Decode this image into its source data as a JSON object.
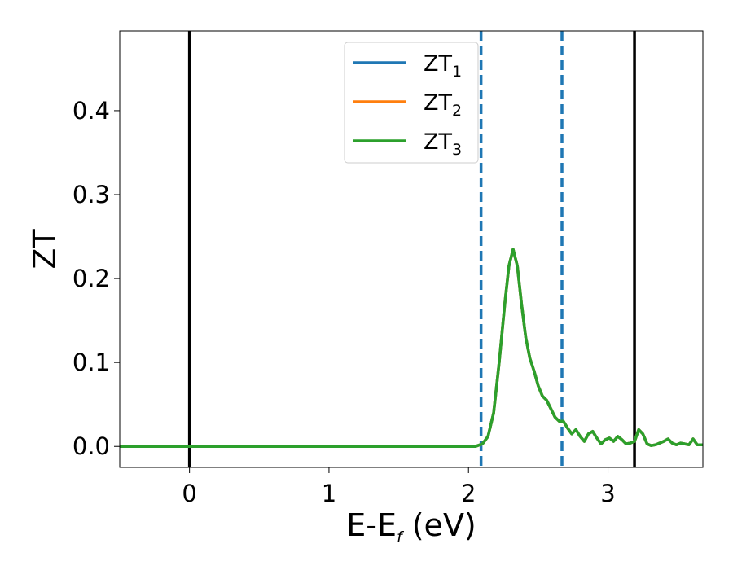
{
  "chart_data": {
    "type": "line",
    "title": "",
    "xlabel": "E-E",
    "xlabel_sub": "f",
    "xlabel_suffix": " (eV)",
    "ylabel": "ZT",
    "xlim": [
      -0.5,
      3.68
    ],
    "ylim": [
      -0.025,
      0.495
    ],
    "xticks": [
      0,
      1,
      2,
      3
    ],
    "xtick_labels": [
      "0",
      "1",
      "2",
      "3"
    ],
    "yticks": [
      0.0,
      0.1,
      0.2,
      0.3,
      0.4
    ],
    "ytick_labels": [
      "0.0",
      "0.1",
      "0.2",
      "0.3",
      "0.4"
    ],
    "grid": false,
    "legend_position": "top-center",
    "legend": [
      {
        "label": "ZT",
        "sub": "1",
        "color": "#1f77b4"
      },
      {
        "label": "ZT",
        "sub": "2",
        "color": "#ff7f0e"
      },
      {
        "label": "ZT",
        "sub": "3",
        "color": "#2ca02c"
      }
    ],
    "vlines": [
      {
        "x": 0.0,
        "style": "solid",
        "color": "#000000"
      },
      {
        "x": 3.19,
        "style": "solid",
        "color": "#000000"
      },
      {
        "x": 2.09,
        "style": "dashed",
        "color": "#1f77b4"
      },
      {
        "x": 2.67,
        "style": "dashed",
        "color": "#1f77b4"
      }
    ],
    "x": [
      -0.5,
      0.0,
      0.5,
      1.0,
      1.5,
      1.9,
      2.0,
      2.05,
      2.1,
      2.14,
      2.18,
      2.22,
      2.26,
      2.29,
      2.32,
      2.35,
      2.38,
      2.41,
      2.44,
      2.47,
      2.5,
      2.53,
      2.56,
      2.59,
      2.62,
      2.65,
      2.68,
      2.71,
      2.74,
      2.77,
      2.8,
      2.83,
      2.86,
      2.89,
      2.92,
      2.95,
      2.98,
      3.01,
      3.04,
      3.07,
      3.1,
      3.13,
      3.16,
      3.19,
      3.22,
      3.25,
      3.28,
      3.31,
      3.34,
      3.37,
      3.4,
      3.43,
      3.46,
      3.49,
      3.52,
      3.55,
      3.58,
      3.61,
      3.64,
      3.68
    ],
    "series": [
      {
        "name": "ZT1",
        "color": "#1f77b4",
        "values": [
          0,
          0,
          0,
          0,
          0,
          0,
          0,
          0,
          0.003,
          0.012,
          0.04,
          0.1,
          0.17,
          0.215,
          0.235,
          0.215,
          0.17,
          0.13,
          0.105,
          0.09,
          0.072,
          0.06,
          0.055,
          0.045,
          0.035,
          0.03,
          0.03,
          0.022,
          0.015,
          0.02,
          0.012,
          0.006,
          0.015,
          0.018,
          0.01,
          0.003,
          0.008,
          0.01,
          0.006,
          0.012,
          0.008,
          0.003,
          0.004,
          0.006,
          0.02,
          0.015,
          0.003,
          0.001,
          0.002,
          0.004,
          0.006,
          0.009,
          0.004,
          0.002,
          0.004,
          0.003,
          0.002,
          0.009,
          0.002,
          0.002
        ]
      },
      {
        "name": "ZT2",
        "color": "#ff7f0e",
        "values": [
          0,
          0,
          0,
          0,
          0,
          0,
          0,
          0,
          0.003,
          0.012,
          0.04,
          0.1,
          0.17,
          0.215,
          0.235,
          0.215,
          0.17,
          0.13,
          0.105,
          0.09,
          0.072,
          0.06,
          0.055,
          0.045,
          0.035,
          0.03,
          0.03,
          0.022,
          0.015,
          0.02,
          0.012,
          0.006,
          0.015,
          0.018,
          0.01,
          0.003,
          0.008,
          0.01,
          0.006,
          0.012,
          0.008,
          0.003,
          0.004,
          0.006,
          0.02,
          0.015,
          0.003,
          0.001,
          0.002,
          0.004,
          0.006,
          0.009,
          0.004,
          0.002,
          0.004,
          0.003,
          0.002,
          0.009,
          0.002,
          0.002
        ]
      },
      {
        "name": "ZT3",
        "color": "#2ca02c",
        "values": [
          0,
          0,
          0,
          0,
          0,
          0,
          0,
          0,
          0.003,
          0.012,
          0.04,
          0.1,
          0.17,
          0.215,
          0.235,
          0.215,
          0.17,
          0.13,
          0.105,
          0.09,
          0.072,
          0.06,
          0.055,
          0.045,
          0.035,
          0.03,
          0.03,
          0.022,
          0.015,
          0.02,
          0.012,
          0.006,
          0.015,
          0.018,
          0.01,
          0.003,
          0.008,
          0.01,
          0.006,
          0.012,
          0.008,
          0.003,
          0.004,
          0.006,
          0.02,
          0.015,
          0.003,
          0.001,
          0.002,
          0.004,
          0.006,
          0.009,
          0.004,
          0.002,
          0.004,
          0.003,
          0.002,
          0.009,
          0.002,
          0.002
        ]
      }
    ]
  }
}
